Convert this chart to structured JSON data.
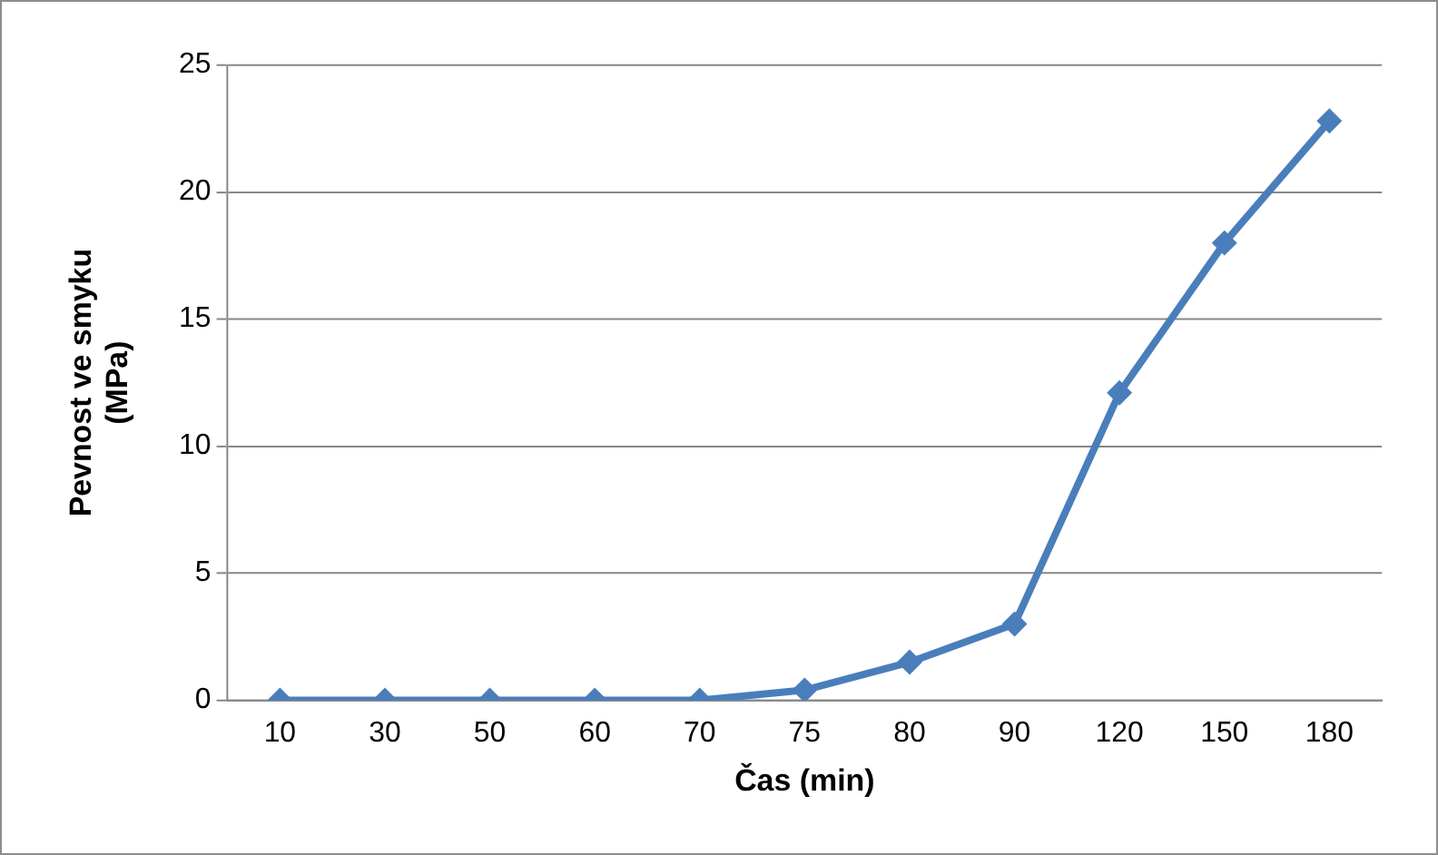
{
  "chart_data": {
    "type": "line",
    "xlabel": "Čas (min)",
    "ylabel": "Pevnost ve smyku (MPa)",
    "categories": [
      "10",
      "30",
      "50",
      "60",
      "70",
      "75",
      "80",
      "90",
      "120",
      "150",
      "180"
    ],
    "series": [
      {
        "color": "#4a7ebb",
        "values": [
          0,
          0,
          0,
          0,
          0,
          0.4,
          1.5,
          3.0,
          12.1,
          18.0,
          22.8
        ]
      }
    ],
    "ylim": [
      0,
      25
    ],
    "yticks": [
      0,
      5,
      10,
      15,
      20,
      25
    ],
    "grid": "y",
    "legend": false,
    "marker": "diamond",
    "line_style": "solid"
  }
}
